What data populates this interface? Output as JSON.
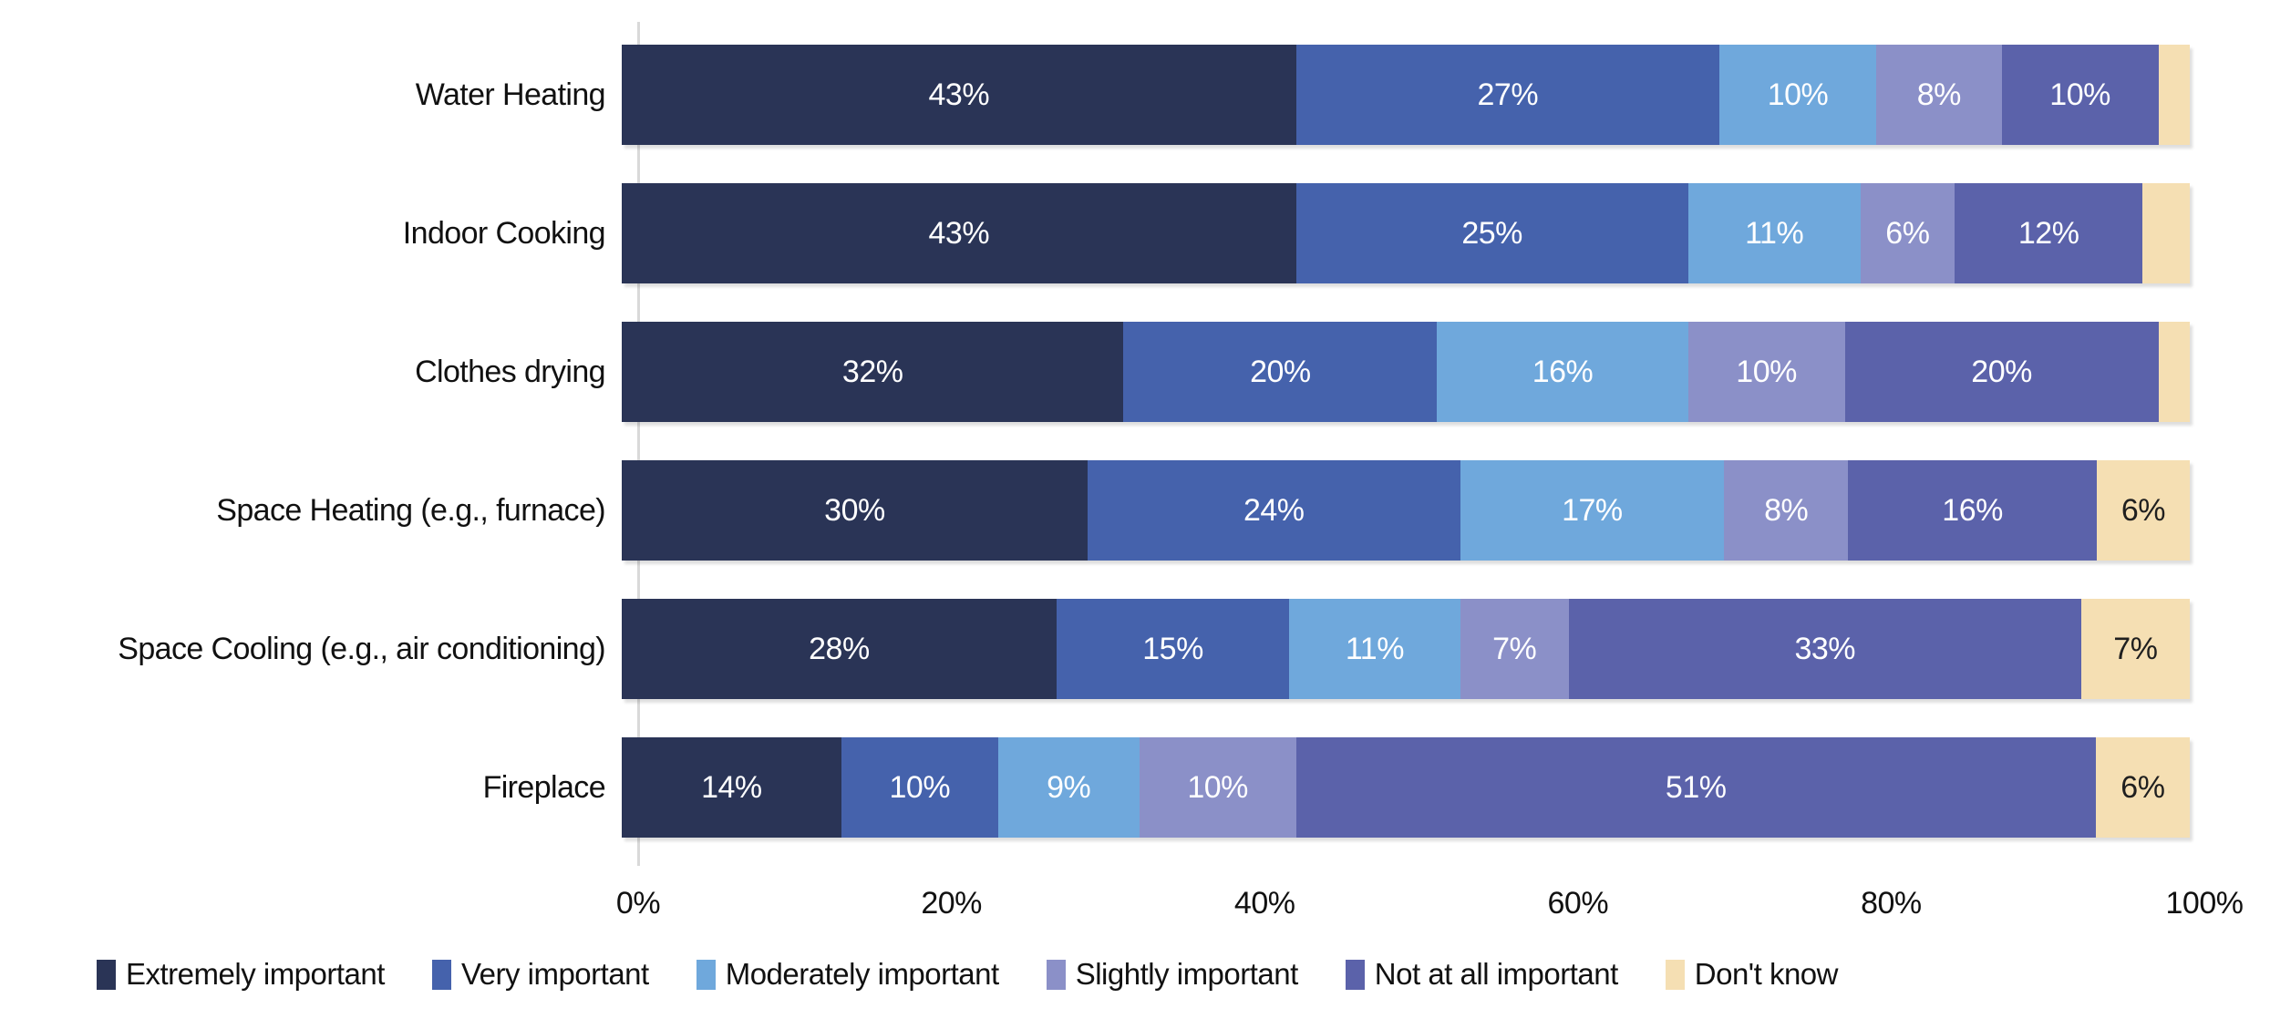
{
  "chart_data": {
    "type": "bar",
    "stacked": true,
    "orientation": "horizontal",
    "title": "",
    "xlabel": "",
    "ylabel": "",
    "xlim": [
      0,
      100
    ],
    "grid": false,
    "legend_position": "bottom",
    "categories": [
      "Water Heating",
      "Indoor Cooking",
      "Clothes drying",
      "Space Heating (e.g., furnace)",
      "Space Cooling (e.g., air conditioning)",
      "Fireplace"
    ],
    "x_ticks": [
      "0%",
      "20%",
      "40%",
      "60%",
      "80%",
      "100%"
    ],
    "series": [
      {
        "name": "Extremely important",
        "color": "#2a3456",
        "label_color": "#ffffff",
        "values": [
          43,
          43,
          32,
          30,
          28,
          14
        ],
        "labels": [
          "43%",
          "43%",
          "32%",
          "30%",
          "28%",
          "14%"
        ]
      },
      {
        "name": "Very important",
        "color": "#4562ac",
        "label_color": "#ffffff",
        "values": [
          27,
          25,
          20,
          24,
          15,
          10
        ],
        "labels": [
          "27%",
          "25%",
          "20%",
          "24%",
          "15%",
          "10%"
        ]
      },
      {
        "name": "Moderately important",
        "color": "#6fa8dc",
        "label_color": "#ffffff",
        "values": [
          10,
          11,
          16,
          17,
          11,
          9
        ],
        "labels": [
          "10%",
          "11%",
          "16%",
          "17%",
          "11%",
          "9%"
        ]
      },
      {
        "name": "Slightly important",
        "color": "#8b90c8",
        "label_color": "#ffffff",
        "values": [
          8,
          6,
          10,
          8,
          7,
          10
        ],
        "labels": [
          "8%",
          "6%",
          "10%",
          "8%",
          "7%",
          "10%"
        ]
      },
      {
        "name": "Not at all important",
        "color": "#5b62aa",
        "label_color": "#ffffff",
        "values": [
          10,
          12,
          20,
          16,
          33,
          51
        ],
        "labels": [
          "10%",
          "12%",
          "20%",
          "16%",
          "33%",
          "51%"
        ]
      },
      {
        "name": "Don't know",
        "color": "#f5dfb3",
        "label_color": "#1f1f1f",
        "values": [
          2,
          3,
          2,
          6,
          7,
          6
        ],
        "labels": [
          "",
          "",
          "",
          "6%",
          "7%",
          "6%"
        ]
      }
    ]
  }
}
